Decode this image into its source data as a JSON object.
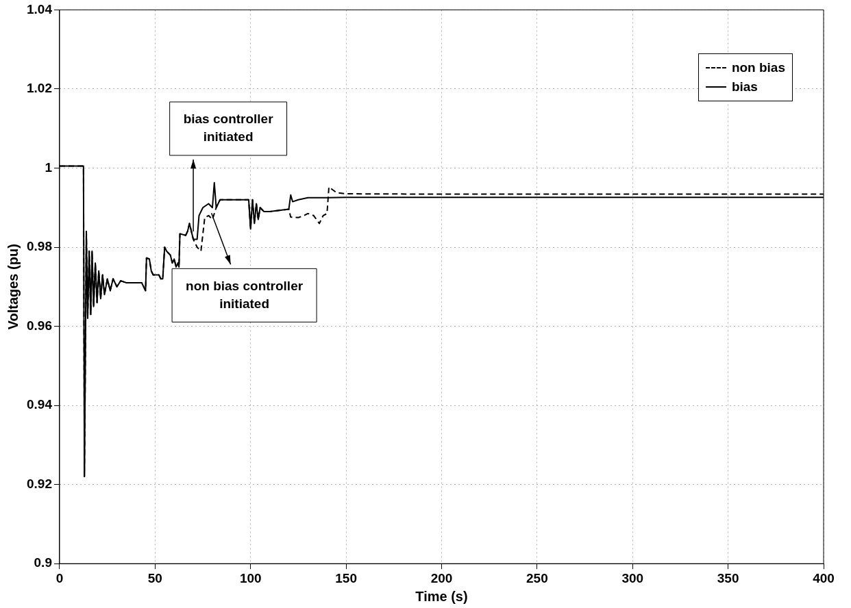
{
  "chart_data": {
    "type": "line",
    "xlabel": "Time (s)",
    "ylabel": "Voltages (pu)",
    "xlim": [
      0,
      400
    ],
    "xticks": [
      0,
      50,
      100,
      150,
      200,
      250,
      300,
      350,
      400
    ],
    "ylim": [
      0.9,
      1.04
    ],
    "yticks": [
      0.9,
      0.92,
      0.94,
      0.96,
      0.98,
      1,
      1.02,
      1.04
    ],
    "grid": true,
    "legend": "top right",
    "marker": "none",
    "annotations": [
      {
        "text": "bias controller initiated",
        "x": 70,
        "y": 0.984
      },
      {
        "text": "non bias controller initiated",
        "x": 79.5,
        "y": 0.9886
      }
    ],
    "series": [
      {
        "name": "non bias",
        "color": "#000000",
        "line_style": "dashed",
        "x": [
          0,
          12.5,
          13,
          14,
          14.7,
          15.5,
          16.3,
          17,
          17.8,
          18.7,
          19.6,
          20.5,
          21.5,
          22.5,
          23.5,
          25,
          26.5,
          28,
          30,
          32,
          35,
          40,
          43,
          44,
          45,
          45.5,
          47,
          48,
          49,
          52,
          53,
          54,
          55,
          56,
          58,
          59,
          60,
          61,
          62,
          62.5,
          63,
          66,
          67,
          68,
          69,
          70,
          72,
          74,
          76,
          78,
          80,
          82,
          84,
          90,
          98,
          99,
          100,
          101,
          102,
          103,
          104,
          105,
          107,
          110,
          120,
          121,
          125,
          128,
          130,
          133,
          136,
          138,
          140,
          141,
          145,
          150,
          200,
          300,
          400
        ],
        "values": [
          1.0005,
          1.0005,
          0.922,
          0.984,
          0.962,
          0.979,
          0.963,
          0.979,
          0.965,
          0.976,
          0.966,
          0.974,
          0.967,
          0.973,
          0.968,
          0.972,
          0.969,
          0.972,
          0.97,
          0.9715,
          0.971,
          0.971,
          0.971,
          0.97,
          0.969,
          0.9773,
          0.977,
          0.974,
          0.973,
          0.973,
          0.972,
          0.972,
          0.98,
          0.979,
          0.978,
          0.976,
          0.977,
          0.975,
          0.976,
          0.975,
          0.9834,
          0.983,
          0.984,
          0.986,
          0.984,
          0.982,
          0.98,
          0.979,
          0.9875,
          0.988,
          0.987,
          0.99,
          0.992,
          0.992,
          0.992,
          0.992,
          0.9846,
          0.992,
          0.986,
          0.991,
          0.987,
          0.99,
          0.989,
          0.989,
          0.9896,
          0.9876,
          0.9875,
          0.988,
          0.9885,
          0.988,
          0.986,
          0.988,
          0.9885,
          0.9952,
          0.9938,
          0.9935,
          0.9934,
          0.9934,
          0.9934
        ]
      },
      {
        "name": "bias",
        "color": "#000000",
        "line_style": "solid",
        "x": [
          0,
          12.5,
          13,
          14,
          14.7,
          15.5,
          16.3,
          17,
          17.8,
          18.7,
          19.6,
          20.5,
          21.5,
          22.5,
          23.5,
          25,
          26.5,
          28,
          30,
          32,
          35,
          40,
          43,
          44,
          45,
          45.5,
          47,
          48,
          49,
          52,
          53,
          54,
          55,
          56,
          58,
          59,
          60,
          61,
          62,
          62.5,
          63,
          66,
          67,
          68,
          69,
          70,
          72,
          73,
          75,
          78,
          80,
          81,
          82,
          84,
          90,
          98,
          99,
          100,
          101,
          102,
          103,
          104,
          105,
          107,
          110,
          120,
          121,
          122,
          125,
          130,
          140,
          150,
          200,
          300,
          400
        ],
        "values": [
          1.0005,
          1.0005,
          0.922,
          0.984,
          0.962,
          0.979,
          0.963,
          0.979,
          0.965,
          0.976,
          0.966,
          0.974,
          0.967,
          0.973,
          0.968,
          0.972,
          0.969,
          0.972,
          0.97,
          0.9715,
          0.971,
          0.971,
          0.971,
          0.97,
          0.969,
          0.9773,
          0.977,
          0.974,
          0.973,
          0.973,
          0.972,
          0.972,
          0.98,
          0.979,
          0.978,
          0.976,
          0.977,
          0.975,
          0.976,
          0.975,
          0.9834,
          0.983,
          0.984,
          0.986,
          0.984,
          0.982,
          0.982,
          0.988,
          0.99,
          0.991,
          0.99,
          0.9963,
          0.99,
          0.992,
          0.992,
          0.992,
          0.992,
          0.9846,
          0.992,
          0.986,
          0.991,
          0.987,
          0.99,
          0.989,
          0.989,
          0.9896,
          0.9932,
          0.9915,
          0.992,
          0.9925,
          0.9925,
          0.9926,
          0.9926,
          0.9926,
          0.9926
        ]
      }
    ]
  }
}
